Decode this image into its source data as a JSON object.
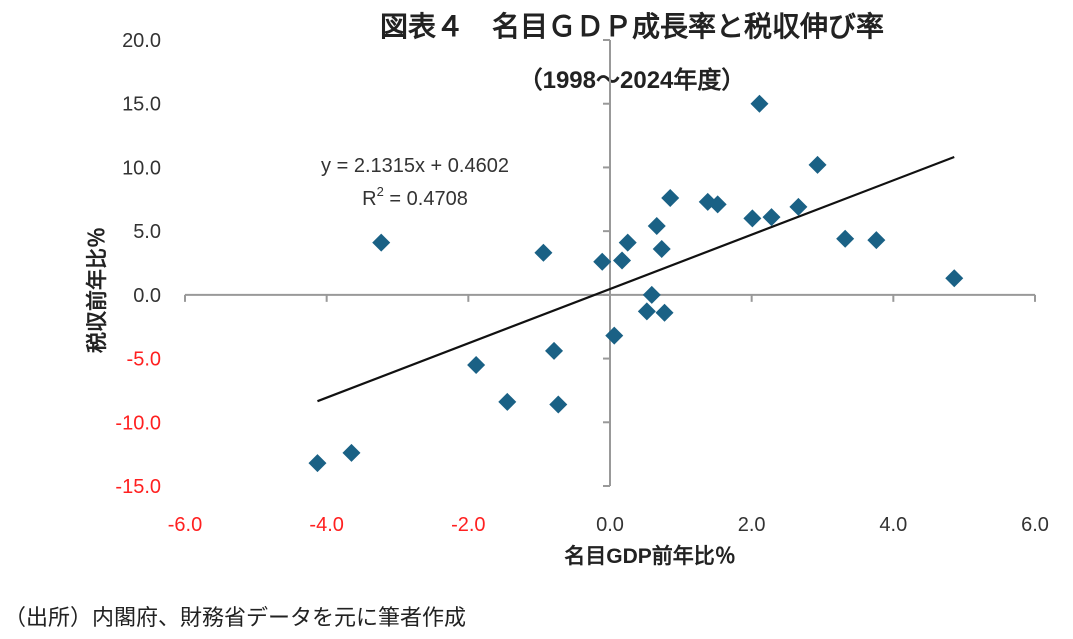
{
  "chart_data": {
    "type": "scatter",
    "title": "図表４　名目ＧＤＰ成長率と税収伸び率",
    "subtitle": "（1998～2024年度）",
    "xlabel": "名目GDP前年比％",
    "ylabel": "税収前年比％",
    "xlim": [
      -6,
      6
    ],
    "ylim": [
      -15,
      20
    ],
    "xticks": [
      "-6.0",
      "-4.0",
      "-2.0",
      "0.0",
      "2.0",
      "4.0",
      "6.0"
    ],
    "yticks": [
      "20.0",
      "15.0",
      "10.0",
      "5.0",
      "0.0",
      "-5.0",
      "-10.0",
      "-15.0"
    ],
    "negative_tick_color": "#ff2020",
    "marker": "diamond",
    "marker_color": "#1a6185",
    "grid": false,
    "points": [
      [
        -4.13,
        -13.2
      ],
      [
        -3.65,
        -12.4
      ],
      [
        -3.23,
        4.1
      ],
      [
        -1.89,
        -5.5
      ],
      [
        -1.45,
        -8.4
      ],
      [
        -0.94,
        3.3
      ],
      [
        -0.79,
        -4.4
      ],
      [
        -0.73,
        -8.6
      ],
      [
        -0.11,
        2.6
      ],
      [
        0.06,
        -3.2
      ],
      [
        0.17,
        2.7
      ],
      [
        0.25,
        4.1
      ],
      [
        0.52,
        -1.3
      ],
      [
        0.59,
        0.0
      ],
      [
        0.66,
        5.4
      ],
      [
        0.73,
        3.6
      ],
      [
        0.77,
        -1.4
      ],
      [
        0.85,
        7.6
      ],
      [
        1.38,
        7.3
      ],
      [
        1.52,
        7.1
      ],
      [
        2.01,
        6.0
      ],
      [
        2.11,
        15.0
      ],
      [
        2.28,
        6.1
      ],
      [
        2.66,
        6.9
      ],
      [
        2.93,
        10.2
      ],
      [
        3.32,
        4.4
      ],
      [
        3.76,
        4.3
      ],
      [
        4.86,
        1.3
      ]
    ],
    "trendline": {
      "slope": 2.1315,
      "intercept": 0.4602,
      "x_range": [
        -4.13,
        4.86
      ],
      "equation": "y = 2.1315x + 0.4602",
      "r2_label": "R",
      "r2_sup": "2",
      "r2_value": " = 0.4708"
    }
  },
  "footer": "（出所）内閣府、財務省データを元に筆者作成"
}
